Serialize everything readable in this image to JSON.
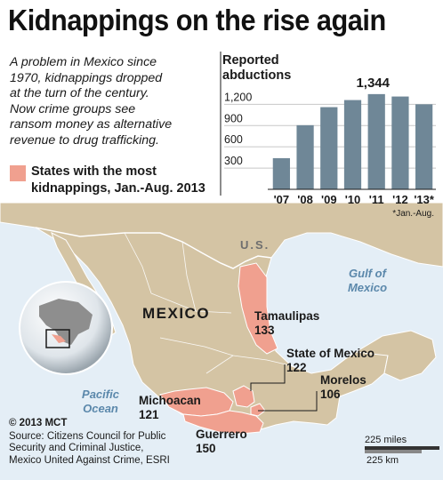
{
  "title": "Kidnappings on the rise again",
  "intro_lines": [
    "A problem in Mexico since",
    "1970, kidnappings dropped",
    "at the turn of the century.",
    "Now crime groups see",
    "ransom money as alternative",
    "revenue to drug trafficking."
  ],
  "legend": {
    "color": "#f0a08f",
    "lines": [
      "States with the most",
      "kidnappings, Jan.-Aug. 2013"
    ]
  },
  "chart_data": {
    "type": "bar",
    "title_lines": [
      "Reported",
      "abductions"
    ],
    "categories": [
      "'07",
      "'08",
      "'09",
      "'10",
      "'11",
      "'12",
      "'13*"
    ],
    "values": [
      440,
      905,
      1160,
      1260,
      1344,
      1310,
      1200
    ],
    "ylim": [
      0,
      1380
    ],
    "y_ticks": [
      "1,200",
      "900",
      "600",
      "300"
    ],
    "y_tick_values": [
      1200,
      900,
      600,
      300
    ],
    "highlight_label": "1,344",
    "footnote": "*Jan.-Aug.",
    "bar_color": "#6f8797"
  },
  "map": {
    "country_label": "MEXICO",
    "us_label": "U.S.",
    "gulf_label": [
      "Gulf of",
      "Mexico"
    ],
    "pacific_label": [
      "Pacific",
      "Ocean"
    ],
    "land_color": "#d4c4a4",
    "water_color": "#e4eef6",
    "state_color": "#f0a08f",
    "states": [
      {
        "name": "Tamaulipas",
        "value": "133"
      },
      {
        "name": "State of Mexico",
        "value": "122"
      },
      {
        "name": "Morelos",
        "value": "106"
      },
      {
        "name": "Michoacan",
        "value": "121"
      },
      {
        "name": "Guerrero",
        "value": "150"
      }
    ],
    "scale_miles": "225 miles",
    "scale_km": "225 km"
  },
  "credits": {
    "copyright": "© 2013 MCT",
    "source_lines": [
      "Source: Citizens Council for Public",
      "Security and Criminal Justice,",
      "Mexico United Against Crime, ESRI"
    ]
  }
}
